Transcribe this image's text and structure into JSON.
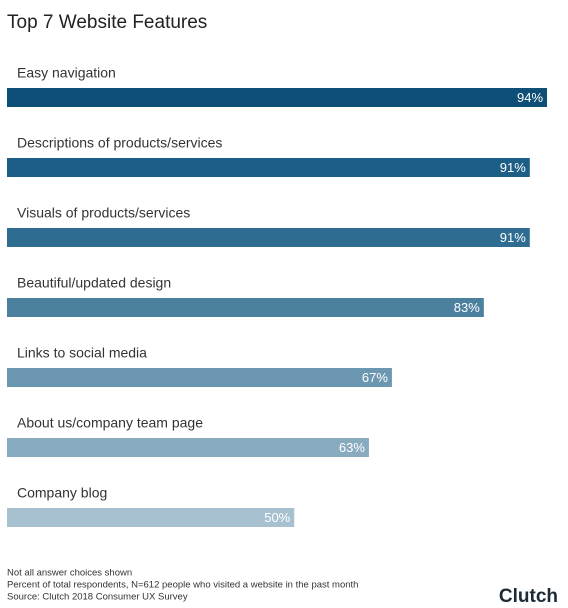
{
  "chart_data": {
    "type": "bar",
    "title": "Top 7 Website Features",
    "categories": [
      "Easy navigation",
      "Descriptions of products/services",
      "Visuals of products/services",
      "Beautiful/updated design",
      "Links to social media",
      "About us/company team page",
      "Company blog"
    ],
    "values": [
      94,
      91,
      91,
      83,
      67,
      63,
      50
    ],
    "value_labels": [
      "94%",
      "91%",
      "91%",
      "83%",
      "67%",
      "63%",
      "50%"
    ],
    "colors": [
      "#0d4f77",
      "#1d5e86",
      "#2e6c92",
      "#4b819f",
      "#6c97b1",
      "#89abc0",
      "#a8c1d1"
    ],
    "notes": [
      "Not all answer choices shown",
      "Percent of total respondents, N=612 people who visited a website in the past month",
      "Source: Clutch 2018 Consumer UX Survey"
    ],
    "brand": "Clutch"
  }
}
